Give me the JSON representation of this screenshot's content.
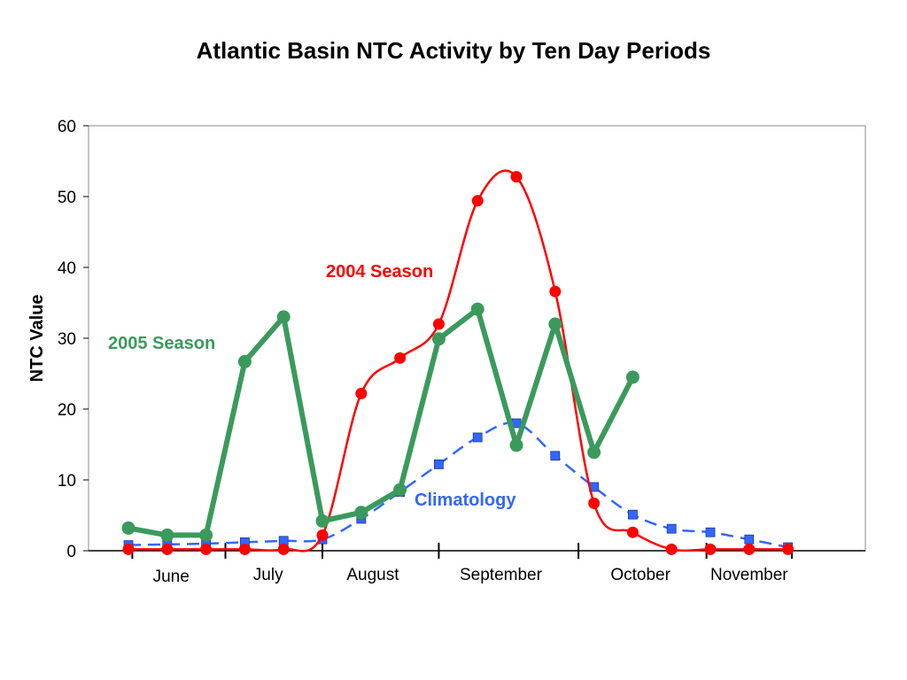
{
  "chart_data": {
    "type": "line",
    "title": "Atlantic Basin NTC Activity by Ten Day Periods",
    "xlabel": "",
    "ylabel": "NTC Value",
    "ylim": [
      0,
      60
    ],
    "yticks": [
      0,
      10,
      20,
      30,
      40,
      50,
      60
    ],
    "x_months": [
      "June",
      "July",
      "August",
      "September",
      "October",
      "November"
    ],
    "grid": false,
    "legend": "none",
    "series": [
      {
        "name": "2004 Season",
        "color": "#ff0000",
        "marker": "circle",
        "style": "smooth",
        "x": [
          0,
          1,
          2,
          3,
          4,
          5,
          6,
          7,
          8,
          9,
          10,
          11,
          12,
          13,
          14,
          15,
          16,
          17
        ],
        "values": [
          0.2,
          0.2,
          0.2,
          0.2,
          0.2,
          2.2,
          22.2,
          27.2,
          32.0,
          49.4,
          52.8,
          36.6,
          6.7,
          2.6,
          0.2,
          0.2,
          0.2,
          0.2
        ]
      },
      {
        "name": "2005 Season",
        "color": "#3a9a5c",
        "marker": "circle",
        "style": "thick",
        "x": [
          0,
          1,
          2,
          3,
          4,
          5,
          6,
          7,
          8,
          9,
          10,
          11,
          12,
          13
        ],
        "values": [
          3.2,
          2.2,
          2.2,
          26.7,
          33.0,
          4.2,
          5.4,
          8.6,
          29.9,
          34.1,
          14.9,
          32.0,
          13.9,
          24.5
        ]
      },
      {
        "name": "Climatology",
        "color": "#3366ff",
        "marker": "square",
        "style": "dashed",
        "x": [
          0,
          1,
          2,
          3,
          4,
          5,
          6,
          7,
          8,
          9,
          10,
          11,
          12,
          13,
          14,
          15,
          16,
          17
        ],
        "values": [
          0.8,
          0.9,
          1.0,
          1.2,
          1.4,
          1.6,
          4.5,
          8.3,
          12.2,
          16.0,
          18.0,
          13.4,
          9.0,
          5.1,
          3.1,
          2.6,
          1.6,
          0.5
        ]
      }
    ]
  }
}
